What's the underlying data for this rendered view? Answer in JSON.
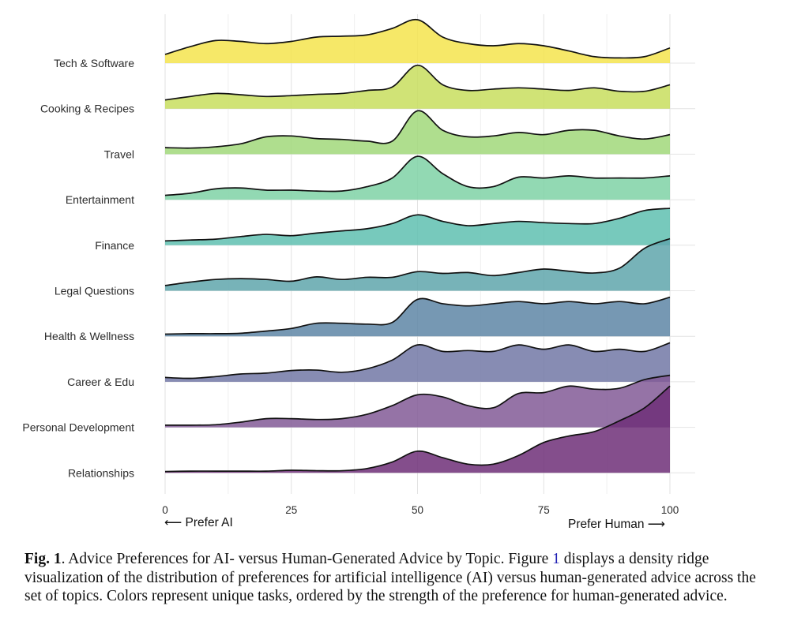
{
  "chart_data": {
    "type": "density_ridgeline",
    "title": "",
    "xlabel": "",
    "ylabel": "",
    "xlim": [
      0,
      100
    ],
    "x_ticks": [
      0,
      25,
      50,
      75,
      100
    ],
    "x_tick_labels": [
      "0",
      "25",
      "50",
      "75",
      "100"
    ],
    "axis_annotations": {
      "left": "⟵ Prefer AI",
      "right": "Prefer Human ⟶"
    },
    "grid": true,
    "density_x": [
      0,
      5,
      10,
      15,
      20,
      25,
      30,
      35,
      40,
      45,
      50,
      55,
      60,
      65,
      70,
      75,
      80,
      85,
      90,
      95,
      100
    ],
    "series": [
      {
        "name": "Tech & Software",
        "color": "#f4e44e",
        "density": [
          0.2,
          0.38,
          0.52,
          0.5,
          0.45,
          0.5,
          0.6,
          0.62,
          0.65,
          0.8,
          1.0,
          0.6,
          0.45,
          0.4,
          0.45,
          0.4,
          0.28,
          0.15,
          0.12,
          0.15,
          0.35
        ]
      },
      {
        "name": "Cooking & Recipes",
        "color": "#c8de5e",
        "density": [
          0.2,
          0.28,
          0.35,
          0.32,
          0.28,
          0.3,
          0.33,
          0.35,
          0.42,
          0.5,
          1.0,
          0.55,
          0.42,
          0.45,
          0.48,
          0.45,
          0.42,
          0.48,
          0.4,
          0.4,
          0.55
        ]
      },
      {
        "name": "Travel",
        "color": "#a1d87a",
        "density": [
          0.15,
          0.14,
          0.17,
          0.24,
          0.4,
          0.42,
          0.36,
          0.34,
          0.3,
          0.3,
          1.0,
          0.55,
          0.4,
          0.42,
          0.5,
          0.45,
          0.55,
          0.55,
          0.42,
          0.35,
          0.45
        ]
      },
      {
        "name": "Entertainment",
        "color": "#7fd2a6",
        "density": [
          0.1,
          0.15,
          0.25,
          0.27,
          0.22,
          0.22,
          0.2,
          0.2,
          0.3,
          0.5,
          1.0,
          0.6,
          0.3,
          0.3,
          0.52,
          0.5,
          0.55,
          0.5,
          0.5,
          0.5,
          0.55
        ]
      },
      {
        "name": "Finance",
        "color": "#5fc0b0",
        "density": [
          0.1,
          0.12,
          0.14,
          0.2,
          0.25,
          0.22,
          0.28,
          0.33,
          0.38,
          0.5,
          0.7,
          0.55,
          0.45,
          0.5,
          0.55,
          0.52,
          0.5,
          0.5,
          0.62,
          0.8,
          0.85
        ]
      },
      {
        "name": "Legal Questions",
        "color": "#5fa6ac",
        "density": [
          0.12,
          0.2,
          0.26,
          0.28,
          0.26,
          0.22,
          0.32,
          0.26,
          0.31,
          0.31,
          0.44,
          0.4,
          0.42,
          0.35,
          0.42,
          0.5,
          0.45,
          0.41,
          0.52,
          0.98,
          1.2
        ]
      },
      {
        "name": "Health & Wellness",
        "color": "#5e86a6",
        "density": [
          0.05,
          0.06,
          0.06,
          0.07,
          0.12,
          0.18,
          0.3,
          0.3,
          0.28,
          0.32,
          0.85,
          0.75,
          0.7,
          0.75,
          0.8,
          0.75,
          0.8,
          0.75,
          0.8,
          0.75,
          0.9
        ]
      },
      {
        "name": "Career & Edu",
        "color": "#7278a6",
        "density": [
          0.1,
          0.08,
          0.12,
          0.18,
          0.2,
          0.26,
          0.27,
          0.22,
          0.3,
          0.5,
          0.85,
          0.7,
          0.72,
          0.7,
          0.85,
          0.75,
          0.85,
          0.7,
          0.75,
          0.7,
          0.9
        ]
      },
      {
        "name": "Personal Development",
        "color": "#825a96",
        "density": [
          0.05,
          0.05,
          0.06,
          0.12,
          0.2,
          0.2,
          0.18,
          0.2,
          0.3,
          0.5,
          0.75,
          0.7,
          0.5,
          0.45,
          0.78,
          0.8,
          0.95,
          0.88,
          0.9,
          1.1,
          1.2
        ]
      },
      {
        "name": "Relationships",
        "color": "#6e2f78",
        "density": [
          0.03,
          0.04,
          0.04,
          0.04,
          0.04,
          0.06,
          0.05,
          0.05,
          0.1,
          0.25,
          0.5,
          0.35,
          0.2,
          0.2,
          0.4,
          0.7,
          0.85,
          0.95,
          1.2,
          1.5,
          2.0
        ]
      }
    ]
  },
  "caption": {
    "label": "Fig. 1",
    "part1": ".  Advice Preferences for AI- versus Human-Generated Advice by Topic. Figure ",
    "ref": "1",
    "part2": " displays a density ridge visualization of the distribution of preferences for artificial intelligence (AI) versus human-generated advice across the set of topics. Colors represent unique tasks, ordered by the strength of the preference for human-generated advice."
  }
}
